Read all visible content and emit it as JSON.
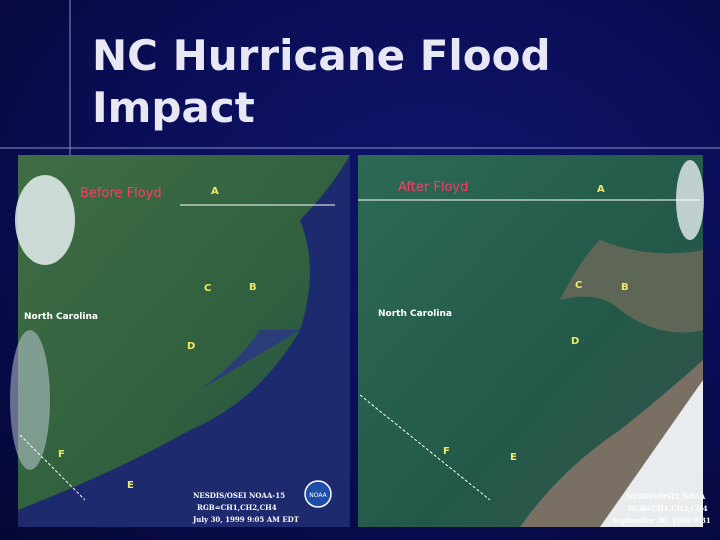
{
  "header": {
    "title": "NC Hurricane Flood Impact"
  },
  "images": [
    {
      "caption": "Before Floyd",
      "labels": [
        "A",
        "C",
        "B",
        "North Carolina",
        "D",
        "F",
        "E"
      ],
      "credits": [
        "NESDIS/OSEI NOAA-15",
        "RGB=CH1,CH2,CH4",
        "July 30, 1999 9:05 AM EDT"
      ],
      "logo": "NOAA"
    },
    {
      "caption": "After Floyd",
      "labels": [
        "A",
        "C",
        "B",
        "North Carolina",
        "D",
        "F",
        "E"
      ],
      "credits": [
        "NESDIS/OSEI NOAA",
        "RGB=CH1,CH2,CH4",
        "September 30, 1999 9:31"
      ]
    }
  ]
}
